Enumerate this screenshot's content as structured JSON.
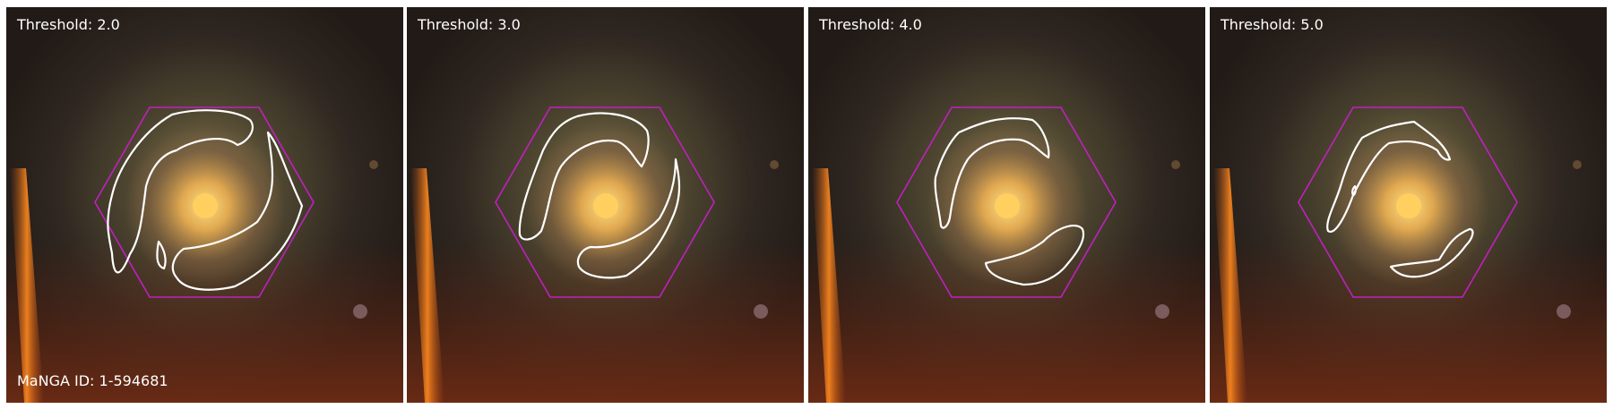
{
  "panels": [
    {
      "label": "Threshold: 2.0",
      "footer": "MaNGA ID: 1-594681"
    },
    {
      "label": "Threshold: 3.0",
      "footer": ""
    },
    {
      "label": "Threshold: 4.0",
      "footer": ""
    },
    {
      "label": "Threshold: 5.0",
      "footer": ""
    }
  ],
  "colors": {
    "hexagon": "#c020c0",
    "contour": "#ffffff",
    "core": "#ffd060",
    "sky": "#241a15"
  }
}
